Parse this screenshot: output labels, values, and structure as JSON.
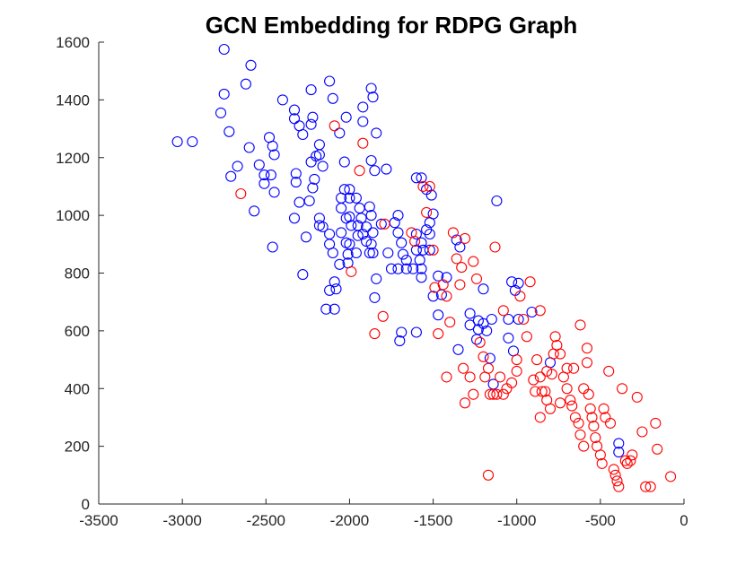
{
  "chart_data": {
    "type": "scatter",
    "title": "GCN Embedding for RDPG Graph",
    "xlabel": "",
    "ylabel": "",
    "xlim": [
      -3500,
      0
    ],
    "ylim": [
      0,
      1600
    ],
    "xticks": [
      -3500,
      -3000,
      -2500,
      -2000,
      -1500,
      -1000,
      -500,
      0
    ],
    "yticks": [
      0,
      200,
      400,
      600,
      800,
      1000,
      1200,
      1400,
      1600
    ],
    "axes_box": "left-and-bottom only",
    "grid": false,
    "legend": "none",
    "marker": "open circle",
    "series": [
      {
        "color": "#0000ff",
        "points": [
          [
            -3030,
            1255
          ],
          [
            -2940,
            1255
          ],
          [
            -2750,
            1575
          ],
          [
            -2590,
            1520
          ],
          [
            -2750,
            1420
          ],
          [
            -2620,
            1455
          ],
          [
            -2770,
            1355
          ],
          [
            -2720,
            1290
          ],
          [
            -2600,
            1235
          ],
          [
            -2670,
            1170
          ],
          [
            -2710,
            1135
          ],
          [
            -2540,
            1175
          ],
          [
            -2510,
            1110
          ],
          [
            -2510,
            1140
          ],
          [
            -2480,
            1270
          ],
          [
            -2460,
            1240
          ],
          [
            -2450,
            1210
          ],
          [
            -2470,
            1140
          ],
          [
            -2450,
            1080
          ],
          [
            -2570,
            1015
          ],
          [
            -2460,
            890
          ],
          [
            -2400,
            1400
          ],
          [
            -2330,
            1365
          ],
          [
            -2330,
            1335
          ],
          [
            -2300,
            1310
          ],
          [
            -2280,
            1280
          ],
          [
            -2230,
            1435
          ],
          [
            -2120,
            1465
          ],
          [
            -2100,
            1405
          ],
          [
            -2220,
            1340
          ],
          [
            -2230,
            1315
          ],
          [
            -2180,
            1245
          ],
          [
            -2200,
            1205
          ],
          [
            -2180,
            1210
          ],
          [
            -2160,
            1170
          ],
          [
            -2230,
            1185
          ],
          [
            -2210,
            1125
          ],
          [
            -2220,
            1095
          ],
          [
            -2320,
            1145
          ],
          [
            -2320,
            1115
          ],
          [
            -2240,
            1050
          ],
          [
            -2300,
            1045
          ],
          [
            -2330,
            990
          ],
          [
            -2180,
            990
          ],
          [
            -2180,
            965
          ],
          [
            -2160,
            960
          ],
          [
            -2260,
            925
          ],
          [
            -2120,
            935
          ],
          [
            -2120,
            900
          ],
          [
            -2100,
            870
          ],
          [
            -2060,
            1285
          ],
          [
            -2020,
            1340
          ],
          [
            -2030,
            1185
          ],
          [
            -2030,
            1090
          ],
          [
            -2050,
            1060
          ],
          [
            -2000,
            1090
          ],
          [
            -2000,
            1060
          ],
          [
            -2050,
            1025
          ],
          [
            -2020,
            990
          ],
          [
            -2000,
            995
          ],
          [
            -1990,
            965
          ],
          [
            -2050,
            940
          ],
          [
            -2020,
            905
          ],
          [
            -2000,
            900
          ],
          [
            -2010,
            865
          ],
          [
            -1960,
            1060
          ],
          [
            -1940,
            1025
          ],
          [
            -1930,
            990
          ],
          [
            -1950,
            965
          ],
          [
            -1950,
            930
          ],
          [
            -1920,
            935
          ],
          [
            -1900,
            960
          ],
          [
            -1900,
            910
          ],
          [
            -1880,
            870
          ],
          [
            -1960,
            870
          ],
          [
            -2010,
            835
          ],
          [
            -1870,
            1440
          ],
          [
            -1860,
            1410
          ],
          [
            -1920,
            1375
          ],
          [
            -1920,
            1325
          ],
          [
            -1870,
            1190
          ],
          [
            -1850,
            1155
          ],
          [
            -1840,
            1285
          ],
          [
            -1780,
            1160
          ],
          [
            -1880,
            1030
          ],
          [
            -1870,
            1000
          ],
          [
            -1860,
            940
          ],
          [
            -1870,
            900
          ],
          [
            -1860,
            870
          ],
          [
            -1840,
            780
          ],
          [
            -1850,
            715
          ],
          [
            -1810,
            970
          ],
          [
            -1770,
            870
          ],
          [
            -1730,
            975
          ],
          [
            -1710,
            1000
          ],
          [
            -1710,
            940
          ],
          [
            -1750,
            815
          ],
          [
            -1710,
            815
          ],
          [
            -1680,
            865
          ],
          [
            -1690,
            905
          ],
          [
            -1660,
            845
          ],
          [
            -1620,
            815
          ],
          [
            -1660,
            815
          ],
          [
            -1600,
            1130
          ],
          [
            -1570,
            1130
          ],
          [
            -1540,
            1090
          ],
          [
            -1510,
            1070
          ],
          [
            -1500,
            1005
          ],
          [
            -1520,
            975
          ],
          [
            -1540,
            950
          ],
          [
            -1520,
            935
          ],
          [
            -1600,
            935
          ],
          [
            -1570,
            905
          ],
          [
            -1560,
            880
          ],
          [
            -1520,
            880
          ],
          [
            -1600,
            880
          ],
          [
            -1580,
            845
          ],
          [
            -1570,
            815
          ],
          [
            -1570,
            785
          ],
          [
            -1470,
            790
          ],
          [
            -1420,
            785
          ],
          [
            -1500,
            720
          ],
          [
            -1450,
            725
          ],
          [
            -1470,
            655
          ],
          [
            -1360,
            915
          ],
          [
            -1340,
            890
          ],
          [
            -1280,
            660
          ],
          [
            -1240,
            570
          ],
          [
            -1230,
            635
          ],
          [
            -1200,
            625
          ],
          [
            -1180,
            600
          ],
          [
            -1150,
            640
          ],
          [
            -1160,
            505
          ],
          [
            -1230,
            605
          ],
          [
            -1120,
            1050
          ],
          [
            -1050,
            575
          ],
          [
            -1020,
            530
          ],
          [
            -1050,
            640
          ],
          [
            -1030,
            770
          ],
          [
            -1010,
            740
          ],
          [
            -990,
            765
          ],
          [
            -990,
            640
          ],
          [
            -910,
            665
          ],
          [
            -800,
            490
          ],
          [
            -1140,
            415
          ],
          [
            -1200,
            745
          ],
          [
            -2090,
            675
          ],
          [
            -2120,
            740
          ],
          [
            -2140,
            675
          ],
          [
            -2080,
            745
          ],
          [
            -2090,
            770
          ],
          [
            -2280,
            795
          ],
          [
            -1700,
            565
          ],
          [
            -1690,
            595
          ],
          [
            -1600,
            595
          ],
          [
            -2060,
            830
          ],
          [
            -1350,
            535
          ],
          [
            -1280,
            620
          ],
          [
            -390,
            210
          ],
          [
            -390,
            180
          ]
        ]
      },
      {
        "color": "#ff0000",
        "points": [
          [
            -2090,
            1310
          ],
          [
            -1940,
            1155
          ],
          [
            -1920,
            1250
          ],
          [
            -2650,
            1075
          ],
          [
            -1990,
            805
          ],
          [
            -1790,
            970
          ],
          [
            -1800,
            650
          ],
          [
            -1850,
            590
          ],
          [
            -1630,
            940
          ],
          [
            -1610,
            910
          ],
          [
            -1520,
            1100
          ],
          [
            -1500,
            880
          ],
          [
            -1490,
            750
          ],
          [
            -1470,
            590
          ],
          [
            -1420,
            440
          ],
          [
            -1400,
            630
          ],
          [
            -1360,
            850
          ],
          [
            -1380,
            940
          ],
          [
            -1310,
            920
          ],
          [
            -1340,
            760
          ],
          [
            -1330,
            820
          ],
          [
            -1320,
            470
          ],
          [
            -1310,
            350
          ],
          [
            -1280,
            440
          ],
          [
            -1260,
            840
          ],
          [
            -1240,
            780
          ],
          [
            -1220,
            560
          ],
          [
            -1200,
            510
          ],
          [
            -1190,
            440
          ],
          [
            -1170,
            470
          ],
          [
            -1160,
            380
          ],
          [
            -1140,
            380
          ],
          [
            -1120,
            380
          ],
          [
            -1100,
            440
          ],
          [
            -1080,
            380
          ],
          [
            -1060,
            400
          ],
          [
            -1030,
            420
          ],
          [
            -1000,
            500
          ],
          [
            -1000,
            460
          ],
          [
            -980,
            720
          ],
          [
            -960,
            640
          ],
          [
            -940,
            580
          ],
          [
            -920,
            770
          ],
          [
            -900,
            430
          ],
          [
            -890,
            390
          ],
          [
            -880,
            500
          ],
          [
            -860,
            440
          ],
          [
            -850,
            390
          ],
          [
            -830,
            390
          ],
          [
            -820,
            460
          ],
          [
            -800,
            330
          ],
          [
            -790,
            450
          ],
          [
            -770,
            580
          ],
          [
            -760,
            550
          ],
          [
            -740,
            520
          ],
          [
            -720,
            440
          ],
          [
            -700,
            400
          ],
          [
            -680,
            360
          ],
          [
            -670,
            340
          ],
          [
            -650,
            300
          ],
          [
            -630,
            280
          ],
          [
            -620,
            240
          ],
          [
            -600,
            200
          ],
          [
            -580,
            490
          ],
          [
            -570,
            380
          ],
          [
            -560,
            330
          ],
          [
            -550,
            300
          ],
          [
            -540,
            270
          ],
          [
            -530,
            230
          ],
          [
            -520,
            200
          ],
          [
            -500,
            170
          ],
          [
            -490,
            140
          ],
          [
            -480,
            330
          ],
          [
            -470,
            300
          ],
          [
            -450,
            460
          ],
          [
            -440,
            280
          ],
          [
            -420,
            120
          ],
          [
            -410,
            100
          ],
          [
            -400,
            80
          ],
          [
            -390,
            60
          ],
          [
            -370,
            400
          ],
          [
            -350,
            150
          ],
          [
            -340,
            140
          ],
          [
            -320,
            150
          ],
          [
            -310,
            170
          ],
          [
            -280,
            370
          ],
          [
            -250,
            250
          ],
          [
            -230,
            60
          ],
          [
            -200,
            60
          ],
          [
            -170,
            280
          ],
          [
            -160,
            190
          ],
          [
            -80,
            95
          ],
          [
            -1170,
            100
          ],
          [
            -1560,
            1100
          ],
          [
            -1540,
            1010
          ],
          [
            -1440,
            760
          ],
          [
            -1420,
            720
          ],
          [
            -1260,
            380
          ],
          [
            -1130,
            890
          ],
          [
            -1080,
            670
          ],
          [
            -860,
            670
          ],
          [
            -860,
            300
          ],
          [
            -820,
            360
          ],
          [
            -780,
            520
          ],
          [
            -740,
            350
          ],
          [
            -700,
            470
          ],
          [
            -660,
            470
          ],
          [
            -600,
            400
          ],
          [
            -620,
            620
          ],
          [
            -580,
            540
          ]
        ]
      }
    ]
  }
}
